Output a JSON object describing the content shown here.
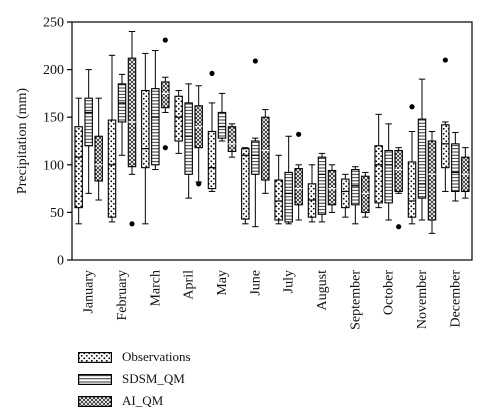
{
  "chart_data": {
    "type": "boxplot",
    "ylabel": "Precipitation (mm)",
    "ylim": [
      0,
      250
    ],
    "yticks": [
      0,
      50,
      100,
      150,
      200,
      250
    ],
    "categories": [
      "January",
      "February",
      "March",
      "April",
      "May",
      "June",
      "July",
      "August",
      "September",
      "October",
      "November",
      "December"
    ],
    "legend_placement": "bottom-left",
    "series": [
      {
        "name": "Observations",
        "pattern": "dots",
        "boxes": [
          {
            "min": 38,
            "q1": 55,
            "median": 108,
            "q3": 140,
            "max": 170,
            "outliers": []
          },
          {
            "min": 40,
            "q1": 45,
            "median": 100,
            "q3": 147,
            "max": 215,
            "outliers": []
          },
          {
            "min": 38,
            "q1": 97,
            "median": 117,
            "q3": 178,
            "max": 217,
            "outliers": []
          },
          {
            "min": 112,
            "q1": 125,
            "median": 150,
            "q3": 172,
            "max": 178,
            "outliers": []
          },
          {
            "min": 72,
            "q1": 75,
            "median": 97,
            "q3": 135,
            "max": 165,
            "outliers": [
              196
            ]
          },
          {
            "min": 38,
            "q1": 43,
            "median": 110,
            "q3": 117,
            "max": 118,
            "outliers": []
          },
          {
            "min": 38,
            "q1": 42,
            "median": 62,
            "q3": 84,
            "max": 110,
            "outliers": []
          },
          {
            "min": 40,
            "q1": 45,
            "median": 63,
            "q3": 80,
            "max": 100,
            "outliers": []
          },
          {
            "min": 45,
            "q1": 55,
            "median": 72,
            "q3": 85,
            "max": 90,
            "outliers": []
          },
          {
            "min": 55,
            "q1": 60,
            "median": 100,
            "q3": 120,
            "max": 153,
            "outliers": []
          },
          {
            "min": 38,
            "q1": 45,
            "median": 62,
            "q3": 103,
            "max": 135,
            "outliers": [
              161
            ]
          },
          {
            "min": 72,
            "q1": 97,
            "median": 122,
            "q3": 142,
            "max": 145,
            "outliers": [
              210
            ]
          }
        ]
      },
      {
        "name": "SDSM_QM",
        "pattern": "horizontal-lines",
        "boxes": [
          {
            "min": 70,
            "q1": 120,
            "median": 155,
            "q3": 170,
            "max": 200,
            "outliers": []
          },
          {
            "min": 110,
            "q1": 145,
            "median": 165,
            "q3": 185,
            "max": 195,
            "outliers": []
          },
          {
            "min": 95,
            "q1": 100,
            "median": 150,
            "q3": 180,
            "max": 220,
            "outliers": []
          },
          {
            "min": 65,
            "q1": 90,
            "median": 130,
            "q3": 165,
            "max": 185,
            "outliers": []
          },
          {
            "min": 125,
            "q1": 128,
            "median": 140,
            "q3": 155,
            "max": 175,
            "outliers": []
          },
          {
            "min": 35,
            "q1": 90,
            "median": 110,
            "q3": 125,
            "max": 128,
            "outliers": [
              209
            ]
          },
          {
            "min": 38,
            "q1": 40,
            "median": 70,
            "q3": 92,
            "max": 130,
            "outliers": []
          },
          {
            "min": 40,
            "q1": 48,
            "median": 90,
            "q3": 108,
            "max": 112,
            "outliers": []
          },
          {
            "min": 38,
            "q1": 58,
            "median": 78,
            "q3": 95,
            "max": 98,
            "outliers": []
          },
          {
            "min": 42,
            "q1": 60,
            "median": 100,
            "q3": 115,
            "max": 143,
            "outliers": []
          },
          {
            "min": 42,
            "q1": 65,
            "median": 80,
            "q3": 148,
            "max": 190,
            "outliers": []
          },
          {
            "min": 62,
            "q1": 72,
            "median": 92,
            "q3": 122,
            "max": 134,
            "outliers": []
          }
        ]
      },
      {
        "name": "AI_QM",
        "pattern": "cross-hatch",
        "boxes": [
          {
            "min": 63,
            "q1": 83,
            "median": 100,
            "q3": 130,
            "max": 170,
            "outliers": []
          },
          {
            "min": 90,
            "q1": 98,
            "median": 145,
            "q3": 212,
            "max": 240,
            "outliers": [
              38
            ]
          },
          {
            "min": 155,
            "q1": 160,
            "median": 175,
            "q3": 187,
            "max": 192,
            "outliers": [
              231,
              118
            ]
          },
          {
            "min": 82,
            "q1": 118,
            "median": 140,
            "q3": 162,
            "max": 183,
            "outliers": [
              80
            ]
          },
          {
            "min": 108,
            "q1": 114,
            "median": 122,
            "q3": 140,
            "max": 143,
            "outliers": []
          },
          {
            "min": 70,
            "q1": 84,
            "median": 115,
            "q3": 150,
            "max": 158,
            "outliers": []
          },
          {
            "min": 42,
            "q1": 58,
            "median": 75,
            "q3": 96,
            "max": 100,
            "outliers": [
              132
            ]
          },
          {
            "min": 50,
            "q1": 58,
            "median": 75,
            "q3": 94,
            "max": 100,
            "outliers": []
          },
          {
            "min": 45,
            "q1": 50,
            "median": 70,
            "q3": 88,
            "max": 92,
            "outliers": []
          },
          {
            "min": 70,
            "q1": 72,
            "median": 95,
            "q3": 115,
            "max": 118,
            "outliers": [
              35
            ]
          },
          {
            "min": 28,
            "q1": 42,
            "median": 90,
            "q3": 125,
            "max": 135,
            "outliers": []
          },
          {
            "min": 65,
            "q1": 72,
            "median": 90,
            "q3": 108,
            "max": 118,
            "outliers": []
          }
        ]
      }
    ]
  }
}
